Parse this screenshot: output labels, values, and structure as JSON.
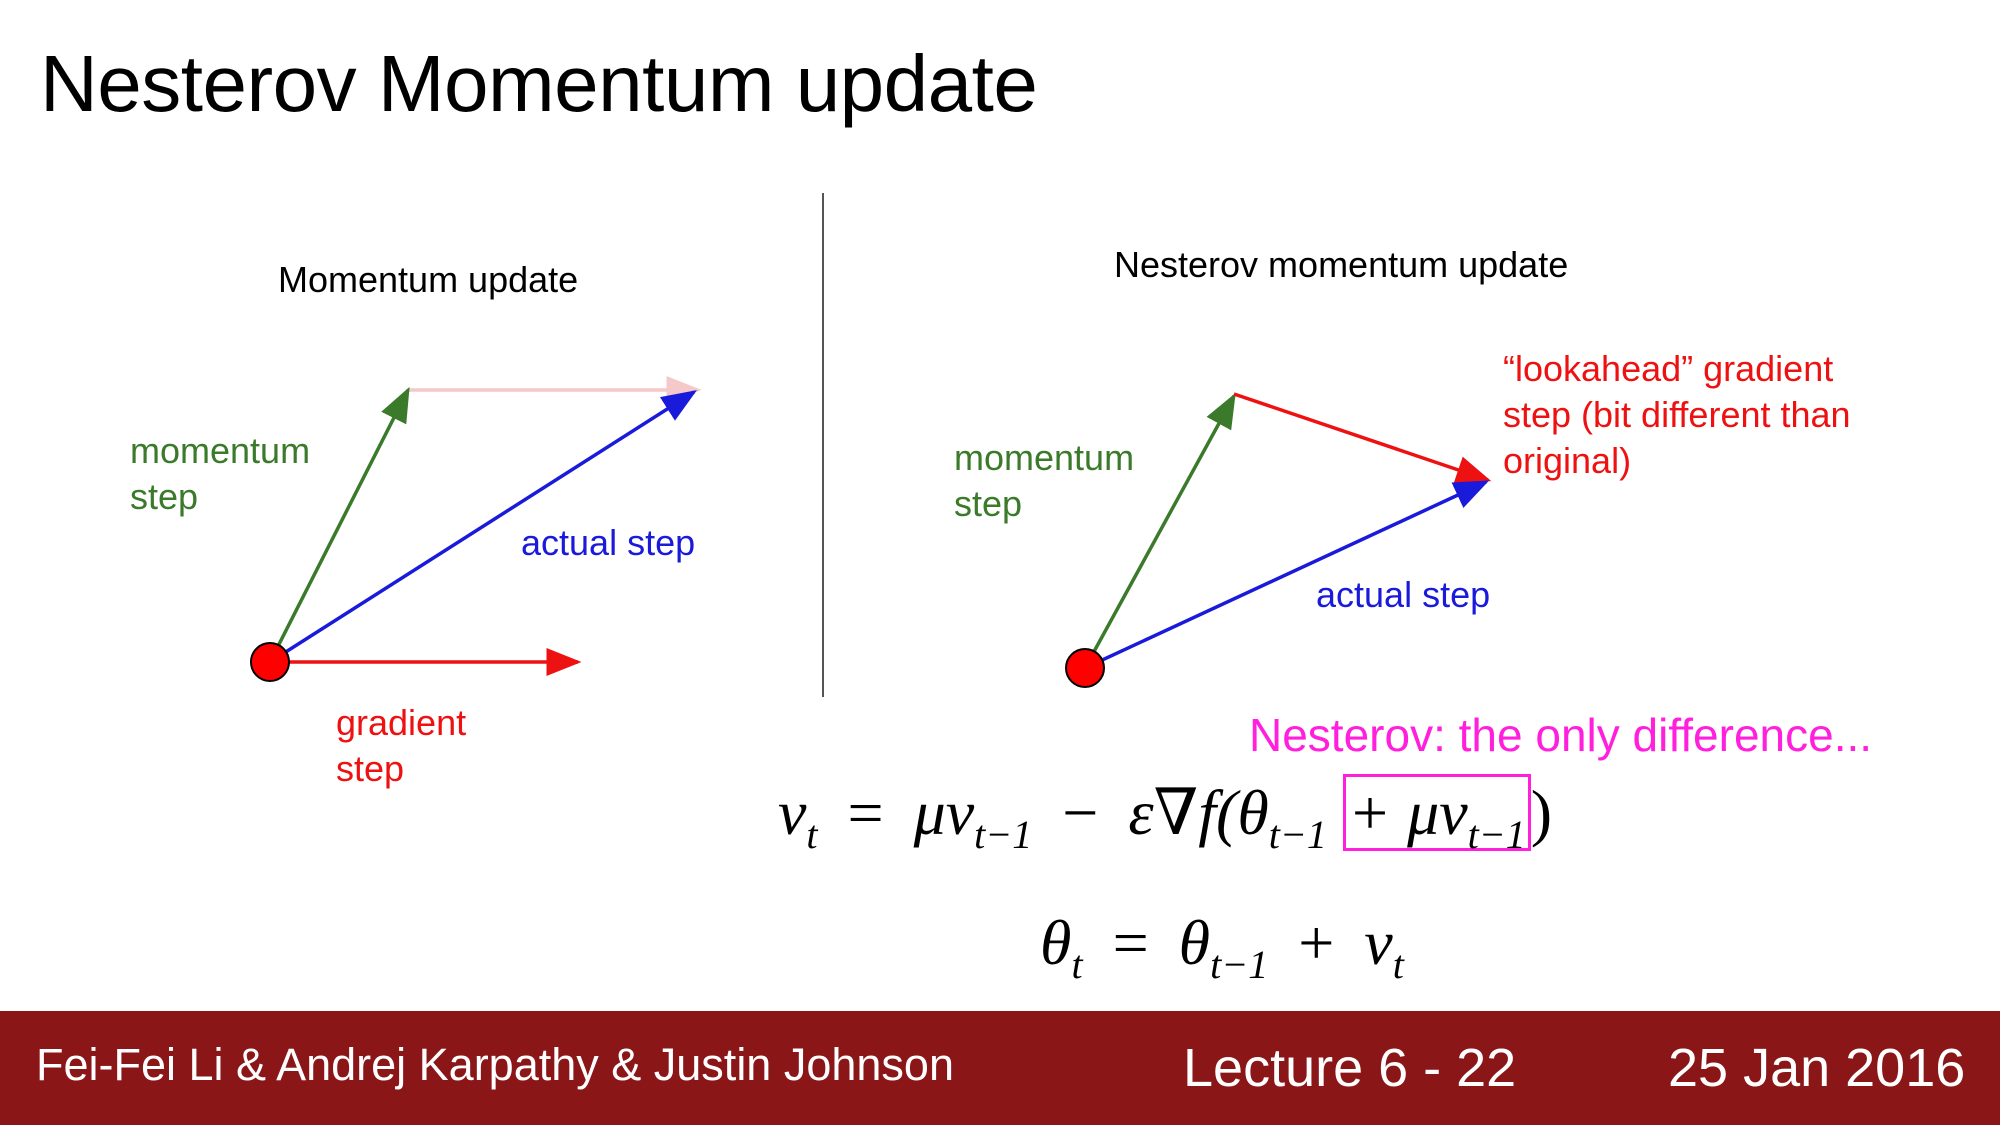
{
  "title": "Nesterov Momentum update",
  "left_panel": {
    "title": "Momentum update",
    "momentum_label": [
      "momentum",
      "step"
    ],
    "actual_label": "actual step",
    "gradient_label": [
      "gradient",
      "step"
    ]
  },
  "right_panel": {
    "title": "Nesterov momentum update",
    "momentum_label": [
      "momentum",
      "step"
    ],
    "actual_label": "actual step",
    "lookahead_label": [
      "“lookahead” gradient",
      "step (bit different than",
      "original)"
    ]
  },
  "note": "Nesterov: the only difference...",
  "equations": {
    "eq1": {
      "lhs": "v",
      "lhs_sub": "t",
      "rel": "=",
      "mu1": "μv",
      "mu1_sub": "t−1",
      "minus": "−",
      "grad": "ε∇f(",
      "theta": "θ",
      "theta_sub": "t−1",
      "boxed": "+ μv",
      "boxed_sub": "t−1",
      "close": ")"
    },
    "eq2": {
      "lhs": "θ",
      "lhs_sub": "t",
      "rel": "=",
      "theta": "θ",
      "theta_sub": "t−1",
      "plus": "+",
      "v": "v",
      "v_sub": "t"
    }
  },
  "footer": {
    "authors": "Fei-Fei Li & Andrej Karpathy & Justin Johnson",
    "lecture": "Lecture 6 - 22",
    "date": "25 Jan 2016"
  },
  "colors": {
    "momentum": "#3a7a2a",
    "actual": "#1a1adb",
    "gradient": "#ee1111",
    "ghost": "#f5c9c9",
    "highlight": "#ff1fdc",
    "footer_bg": "#8b1618"
  }
}
